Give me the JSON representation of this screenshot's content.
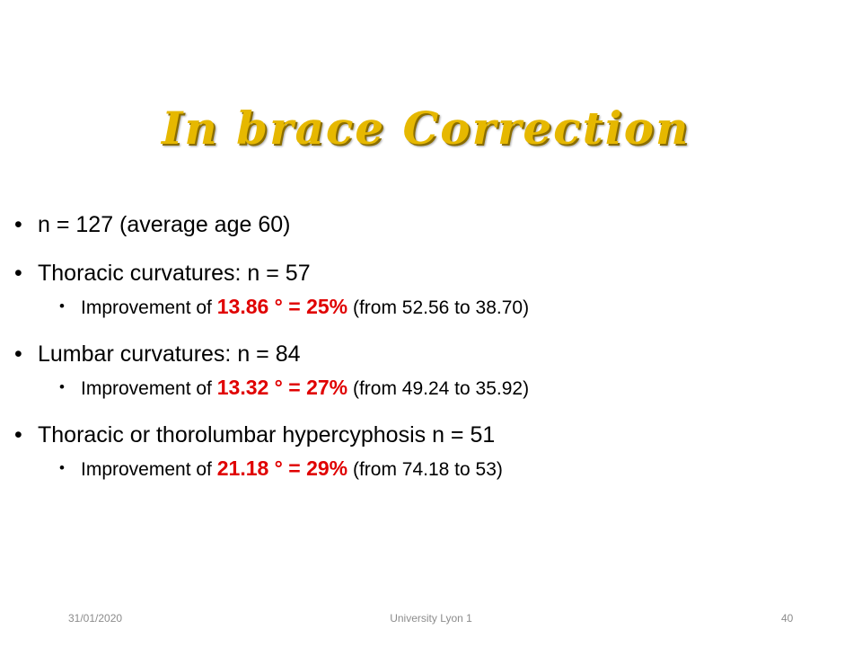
{
  "slide": {
    "title": "In brace Correction",
    "bullets": [
      {
        "text": "n = 127 (average age 60)"
      },
      {
        "text": "Thoracic curvatures: n = 57",
        "sub": {
          "prefix": "Improvement of ",
          "highlight": "13.86 ° = 25%",
          "suffix": " (from 52.56 to 38.70)"
        }
      },
      {
        "text": "Lumbar curvatures: n = 84",
        "sub": {
          "prefix": "Improvement of ",
          "highlight": "13.32 ° = 27%",
          "suffix": " (from 49.24 to 35.92)"
        }
      },
      {
        "text": "Thoracic or thorolumbar hypercyphosis n = 51",
        "sub": {
          "prefix": "Improvement of ",
          "highlight": "21.18 ° = 29%",
          "suffix": " (from 74.18 to 53)"
        }
      }
    ],
    "bullet_glyph": "•",
    "colors": {
      "title": "#E6B800",
      "highlight": "#E00000",
      "footer": "#8c8c8c"
    }
  },
  "footer": {
    "date": "31/01/2020",
    "center": "University Lyon 1",
    "page_number": "40"
  }
}
